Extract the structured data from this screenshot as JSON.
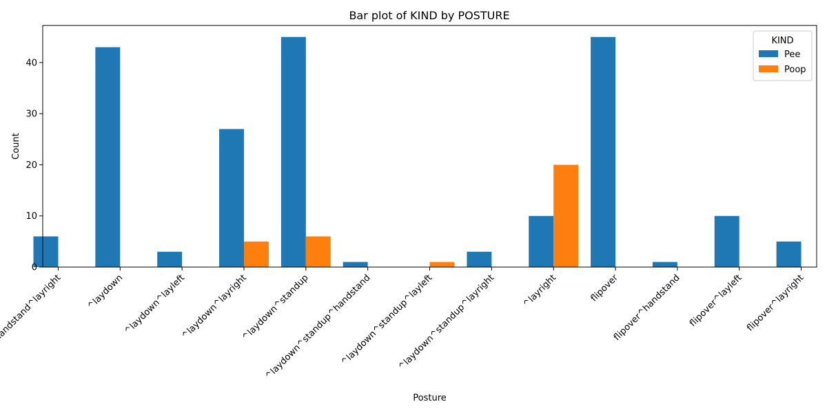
{
  "chart_data": {
    "type": "bar",
    "title": "Bar plot of KIND by POSTURE",
    "xlabel": "Posture",
    "ylabel": "Count",
    "ylim": [
      0,
      47.25
    ],
    "yticks": [
      0,
      10,
      20,
      30,
      40
    ],
    "categories": [
      "^handstand^layright",
      "^laydown",
      "^laydown^layleft",
      "^laydown^layright",
      "^laydown^standup",
      "^laydown^standup^handstand",
      "^laydown^standup^layleft",
      "^laydown^standup^layright",
      "^layright",
      "flipover",
      "flipover^handstand",
      "flipover^layleft",
      "flipover^layright"
    ],
    "series": [
      {
        "name": "Pee",
        "color": "#1f77b4",
        "values": [
          6,
          43,
          3,
          27,
          45,
          1,
          0,
          3,
          10,
          45,
          1,
          10,
          5
        ]
      },
      {
        "name": "Poop",
        "color": "#ff7f0e",
        "values": [
          0,
          0,
          0,
          5,
          6,
          0,
          1,
          0,
          20,
          0,
          0,
          0,
          0
        ]
      }
    ],
    "legend": {
      "title": "KIND",
      "placement": "top-right"
    },
    "grid": false
  }
}
